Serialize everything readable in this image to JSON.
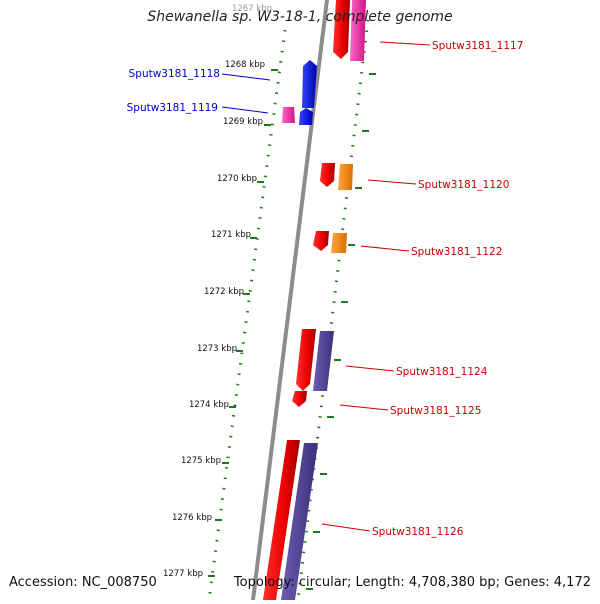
{
  "title": "Shewanella sp. W3-18-1, complete genome",
  "footer": {
    "accession": "Accession: NC_008750",
    "summary": "Topology: circular; Length: 4,708,380 bp; Genes: 4,172"
  },
  "colors": {
    "backbone": "#8c8c8c",
    "ticks": "#1f7a1f",
    "label_forward": "#cc0000",
    "label_reverse": "#0000cc"
  },
  "ruler": {
    "unit": "kbp",
    "start_kbp": 1267,
    "kbp_labels": [
      "1267 kbp",
      "1268 kbp",
      "1269 kbp",
      "1270 kbp",
      "1271 kbp",
      "1272 kbp",
      "1273 kbp",
      "1274 kbp",
      "1275 kbp",
      "1276 kbp",
      "1277 kbp"
    ]
  },
  "genes_reverse": [
    {
      "name": "Sputw3181_1118",
      "start_kbp": 1268.08,
      "end_kbp": 1268.85
    },
    {
      "name": "Sputw3181_1119",
      "start_kbp": 1268.88,
      "end_kbp": 1269.12
    }
  ],
  "genes_forward": [
    {
      "name": "Sputw3181_1117",
      "start_kbp": 1267.0,
      "end_kbp": 1267.45
    },
    {
      "name": "Sputw3181_1120",
      "start_kbp": 1269.95,
      "end_kbp": 1270.2
    },
    {
      "name": "Sputw3181_1122",
      "start_kbp": 1271.0,
      "end_kbp": 1271.2
    },
    {
      "name": "Sputw3181_1124",
      "start_kbp": 1272.95,
      "end_kbp": 1273.6
    },
    {
      "name": "Sputw3181_1125",
      "start_kbp": 1273.7,
      "end_kbp": 1273.95
    },
    {
      "name": "Sputw3181_1126",
      "start_kbp": 1274.75,
      "end_kbp": 1277.5
    }
  ]
}
